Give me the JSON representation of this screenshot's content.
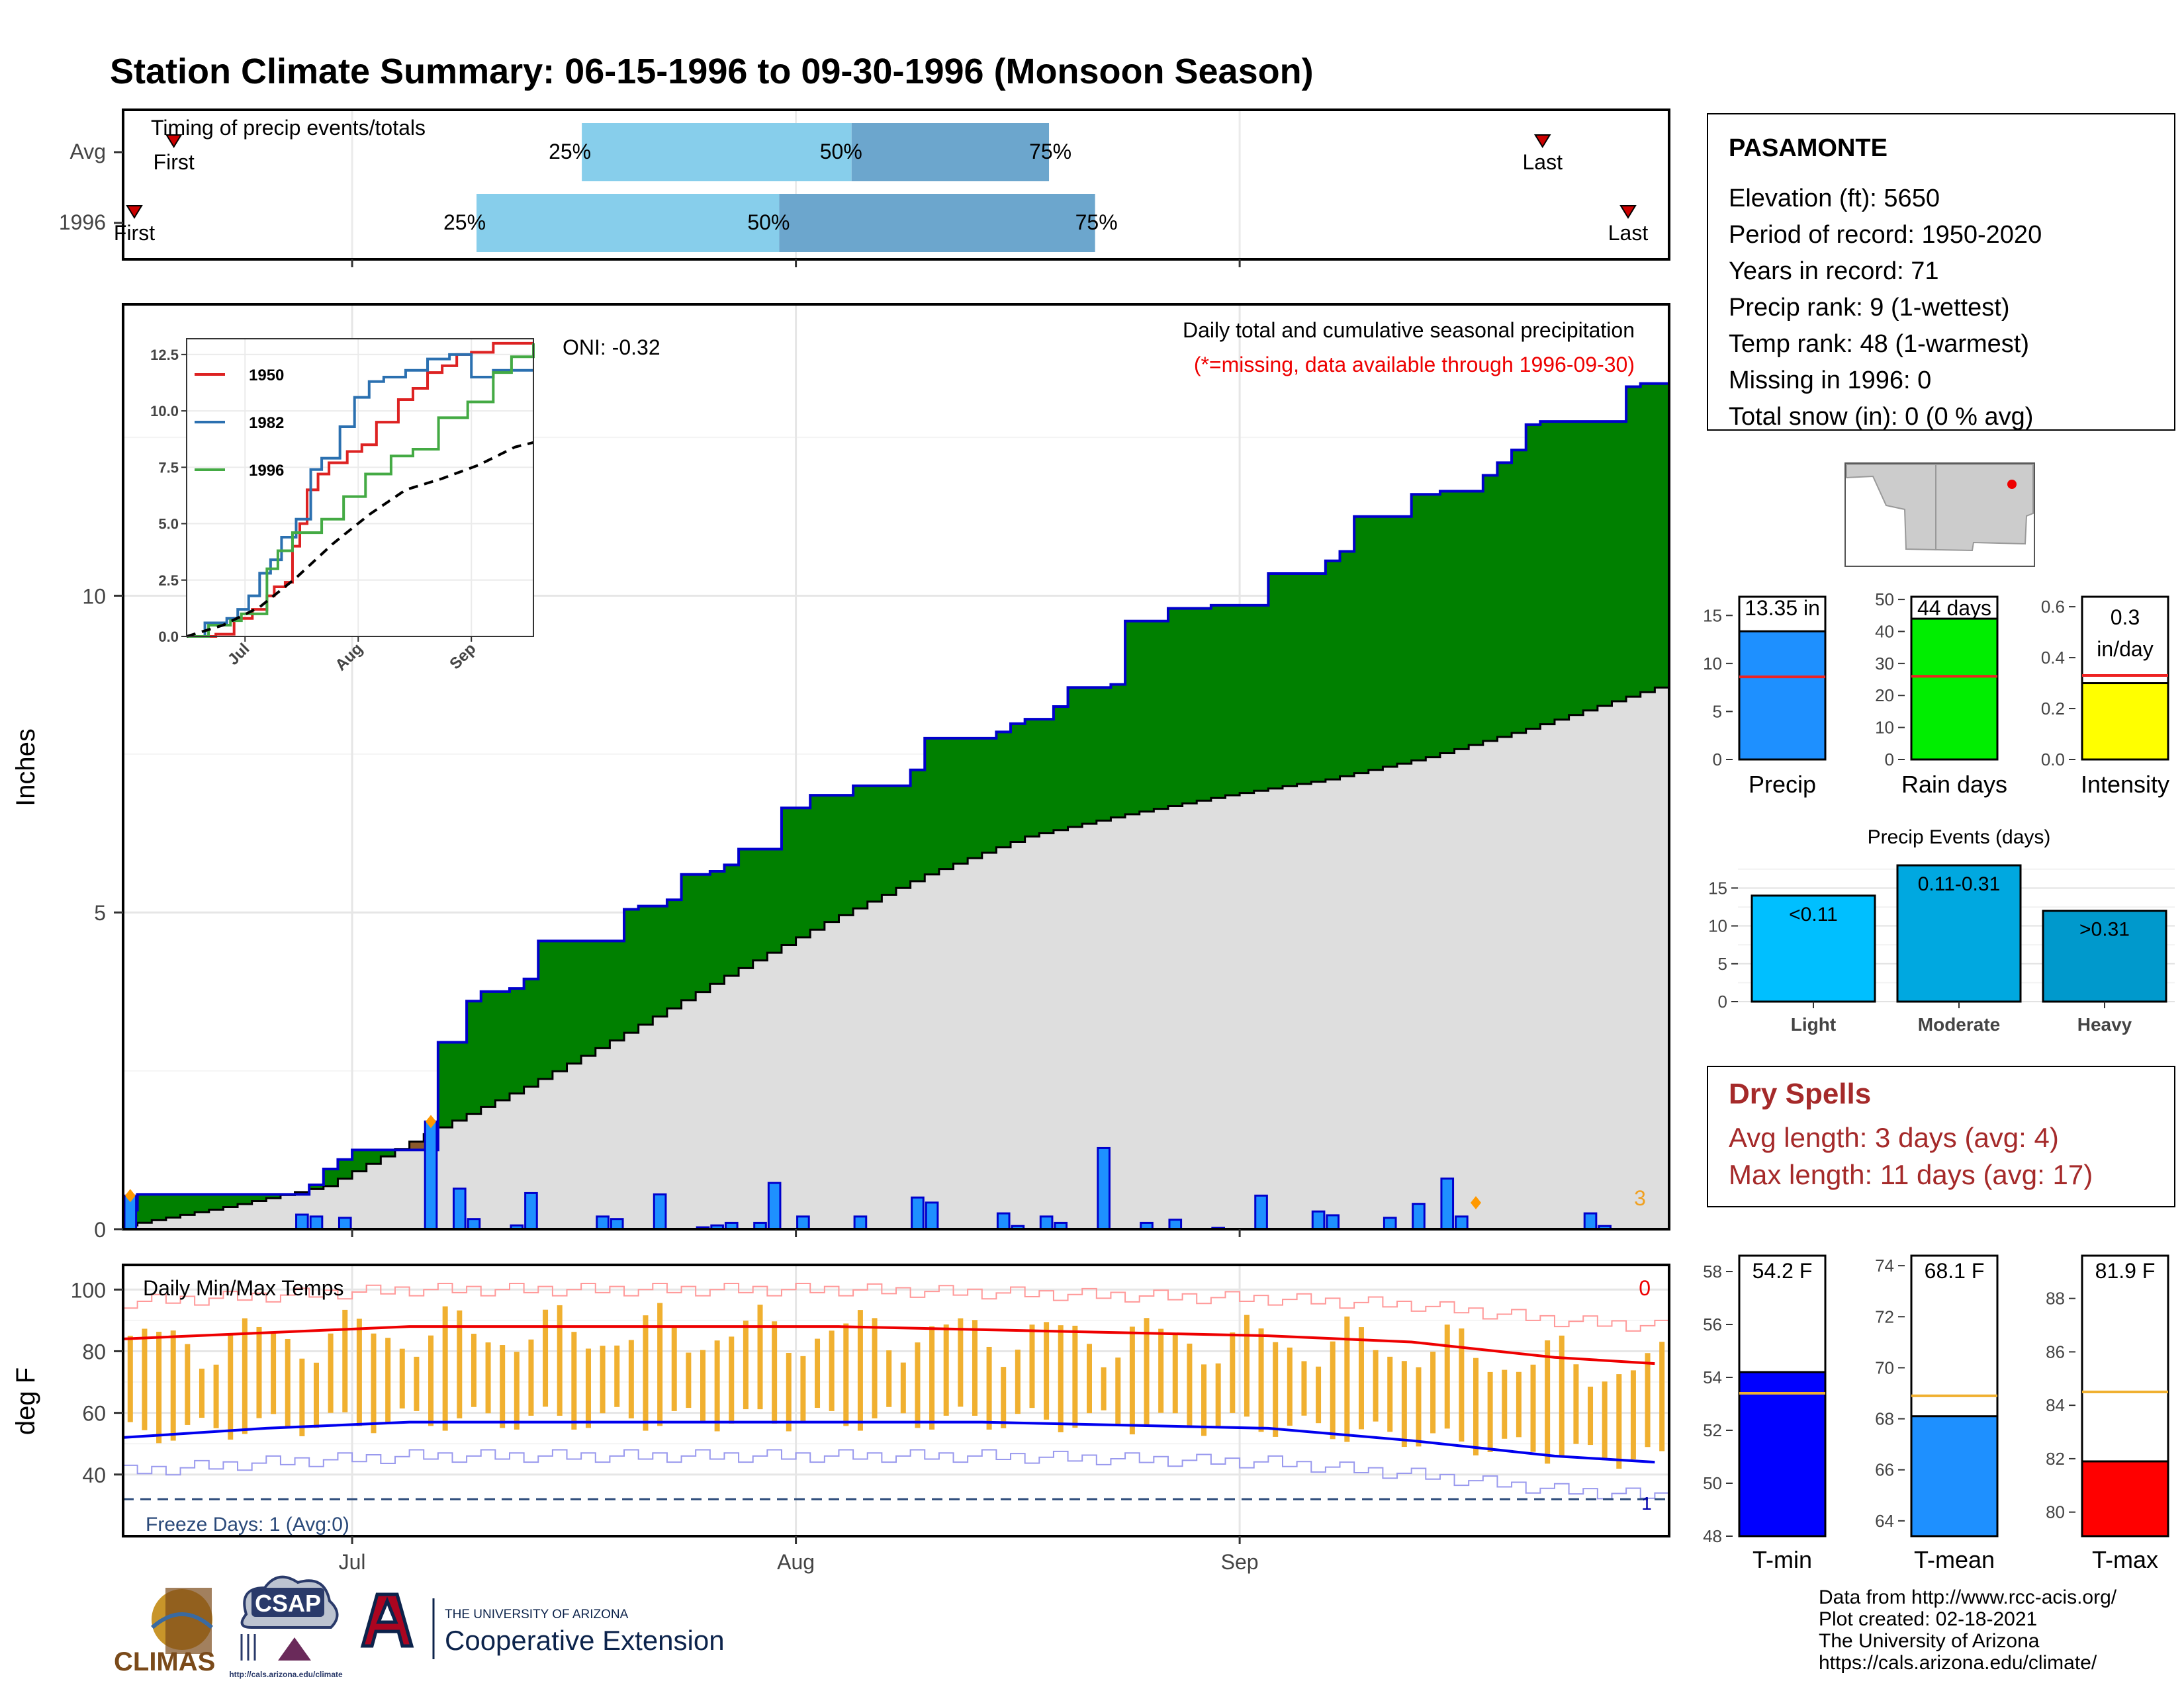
{
  "title": "Station Climate Summary: 06-15-1996 to 09-30-1996 (Monsoon Season)",
  "colors": {
    "title": "#ee0000",
    "cumulative_above": "#008000",
    "cumulative_below": "#8b5a2b",
    "normal_fill": "#dedede",
    "outline": "#0000cc",
    "daily_bar": "#1e90ff",
    "light_blue": "#87ceeb",
    "steel_blue": "#6ca6cd",
    "temp_bar": "#f0b030",
    "tmax_line": "#ee0000",
    "tmin_line": "#0000ee",
    "dry_spells": "#a52a2a",
    "freeze": "#2b4a7a"
  },
  "timing": {
    "label": "Timing of precip events/totals",
    "rows": [
      {
        "name": "Avg",
        "first_day": 3,
        "p25_day": 65,
        "p50_day": 106,
        "p75_day": 136,
        "last_day": 211,
        "first_label": "First",
        "last_label": "Last"
      },
      {
        "name": "1996",
        "first_day": -3,
        "p25_day": 49,
        "p50_day": 95,
        "p75_day": 143,
        "last_day": 224,
        "first_label": "First",
        "last_label": "Last"
      }
    ],
    "pct_labels": [
      "25%",
      "50%",
      "75%"
    ]
  },
  "precip_panel": {
    "ylabel": "Inches",
    "yticks": [
      0,
      5,
      10
    ],
    "ylim": [
      0,
      14.6
    ],
    "xticks": [
      {
        "label": "Jul",
        "day": 16
      },
      {
        "label": "Aug",
        "day": 47
      },
      {
        "label": "Sep",
        "day": 78
      }
    ],
    "oni": "ONI: -0.32",
    "caption": "Daily total and cumulative seasonal precipitation",
    "missing_note": "(*=missing, data available through 1996-09-30)",
    "missing_count": "3"
  },
  "chart_data": [
    {
      "type": "area",
      "name": "cumulative_precipitation",
      "x_unit": "day of season (0 = 1996-06-15)",
      "cumulative_1996": [
        [
          0,
          0.3
        ],
        [
          1,
          0.55
        ],
        [
          6,
          0.55
        ],
        [
          12,
          0.55
        ],
        [
          13,
          0.7
        ],
        [
          14,
          0.95
        ],
        [
          15,
          1.1
        ],
        [
          16,
          1.25
        ],
        [
          21,
          1.25
        ],
        [
          22,
          2.95
        ],
        [
          24,
          3.6
        ],
        [
          25,
          3.75
        ],
        [
          27,
          3.8
        ],
        [
          28,
          3.95
        ],
        [
          29,
          4.55
        ],
        [
          34,
          4.55
        ],
        [
          35,
          5.05
        ],
        [
          36,
          5.1
        ],
        [
          37,
          5.1
        ],
        [
          38,
          5.2
        ],
        [
          39,
          5.6
        ],
        [
          41,
          5.65
        ],
        [
          42,
          5.75
        ],
        [
          43,
          6.0
        ],
        [
          46,
          6.65
        ],
        [
          48,
          6.85
        ],
        [
          51,
          7.0
        ],
        [
          55,
          7.25
        ],
        [
          56,
          7.75
        ],
        [
          61,
          7.85
        ],
        [
          62,
          7.98
        ],
        [
          63,
          8.05
        ],
        [
          65,
          8.25
        ],
        [
          66,
          8.55
        ],
        [
          69,
          8.6
        ],
        [
          70,
          9.6
        ],
        [
          73,
          9.8
        ],
        [
          74,
          9.8
        ],
        [
          76,
          9.85
        ],
        [
          80,
          10.35
        ],
        [
          84,
          10.55
        ],
        [
          85,
          10.7
        ],
        [
          86,
          11.25
        ],
        [
          90,
          11.6
        ],
        [
          92,
          11.65
        ],
        [
          95,
          11.9
        ],
        [
          96,
          12.1
        ],
        [
          97,
          12.3
        ],
        [
          98,
          12.7
        ],
        [
          99,
          12.75
        ],
        [
          104,
          12.75
        ],
        [
          105,
          13.3
        ],
        [
          106,
          13.35
        ],
        [
          107,
          13.35
        ]
      ],
      "normal": [
        [
          0,
          0.06
        ],
        [
          7,
          0.35
        ],
        [
          14,
          0.68
        ],
        [
          21,
          1.5
        ],
        [
          28,
          2.25
        ],
        [
          35,
          3.1
        ],
        [
          42,
          4.0
        ],
        [
          49,
          4.85
        ],
        [
          56,
          5.6
        ],
        [
          63,
          6.2
        ],
        [
          70,
          6.55
        ],
        [
          77,
          6.85
        ],
        [
          84,
          7.1
        ],
        [
          91,
          7.45
        ],
        [
          98,
          7.9
        ],
        [
          107,
          8.55
        ]
      ],
      "ylabel": "Inches"
    },
    {
      "type": "bar",
      "name": "daily_precipitation",
      "x_unit": "day of season",
      "values": [
        [
          0,
          0.53
        ],
        [
          12,
          0.23
        ],
        [
          13,
          0.2
        ],
        [
          15,
          0.18
        ],
        [
          21,
          1.7
        ],
        [
          23,
          0.64
        ],
        [
          24,
          0.16
        ],
        [
          27,
          0.06
        ],
        [
          28,
          0.57
        ],
        [
          33,
          0.2
        ],
        [
          34,
          0.16
        ],
        [
          37,
          0.55
        ],
        [
          40,
          0.03
        ],
        [
          41,
          0.06
        ],
        [
          42,
          0.1
        ],
        [
          44,
          0.1
        ],
        [
          45,
          0.73
        ],
        [
          47,
          0.2
        ],
        [
          51,
          0.2
        ],
        [
          55,
          0.5
        ],
        [
          56,
          0.42
        ],
        [
          61,
          0.25
        ],
        [
          62,
          0.05
        ],
        [
          64,
          0.2
        ],
        [
          65,
          0.1
        ],
        [
          68,
          1.28
        ],
        [
          71,
          0.1
        ],
        [
          73,
          0.15
        ],
        [
          76,
          0.02
        ],
        [
          79,
          0.53
        ],
        [
          83,
          0.28
        ],
        [
          84,
          0.22
        ],
        [
          88,
          0.18
        ],
        [
          90,
          0.4
        ],
        [
          92,
          0.8
        ],
        [
          93,
          0.2
        ],
        [
          102,
          0.25
        ],
        [
          103,
          0.05
        ]
      ],
      "missing_marked_days": [
        0,
        21,
        94
      ]
    },
    {
      "type": "line",
      "name": "inset_cumulative_years",
      "xticks": [
        "Jul",
        "Aug",
        "Sep"
      ],
      "yticks": [
        0.0,
        2.5,
        5.0,
        7.5,
        10.0,
        12.5
      ],
      "ylim": [
        0,
        13.2
      ],
      "series": [
        {
          "name": "1950",
          "color": "#dd2222",
          "points": [
            [
              0,
              0
            ],
            [
              8,
              0.1
            ],
            [
              13,
              0.8
            ],
            [
              18,
              1.2
            ],
            [
              22,
              1.8
            ],
            [
              24,
              2.2
            ],
            [
              27,
              2.4
            ],
            [
              29,
              4.0
            ],
            [
              31,
              5.0
            ],
            [
              33,
              6.5
            ],
            [
              36,
              7.2
            ],
            [
              39,
              7.7
            ],
            [
              44,
              8.2
            ],
            [
              48,
              8.5
            ],
            [
              52,
              9.5
            ],
            [
              58,
              10.5
            ],
            [
              62,
              11.0
            ],
            [
              66,
              11.7
            ],
            [
              70,
              12.0
            ],
            [
              74,
              12.5
            ],
            [
              78,
              12.6
            ],
            [
              84,
              13.0
            ],
            [
              95,
              13.0
            ]
          ]
        },
        {
          "name": "1982",
          "color": "#2b70b0",
          "points": [
            [
              0,
              0
            ],
            [
              5,
              0.6
            ],
            [
              11,
              0.8
            ],
            [
              14,
              1.2
            ],
            [
              17,
              1.8
            ],
            [
              20,
              2.8
            ],
            [
              23,
              3.4
            ],
            [
              26,
              4.4
            ],
            [
              30,
              5.2
            ],
            [
              34,
              7.4
            ],
            [
              37,
              7.9
            ],
            [
              42,
              9.3
            ],
            [
              46,
              10.6
            ],
            [
              50,
              11.3
            ],
            [
              54,
              11.5
            ],
            [
              60,
              11.8
            ],
            [
              66,
              12.3
            ],
            [
              72,
              12.5
            ],
            [
              78,
              11.5
            ],
            [
              84,
              11.8
            ],
            [
              95,
              11.8
            ]
          ]
        },
        {
          "name": "1996",
          "color": "#44aa44",
          "points": [
            [
              0,
              0
            ],
            [
              6,
              0.5
            ],
            [
              12,
              0.7
            ],
            [
              15,
              1.0
            ],
            [
              22,
              3.0
            ],
            [
              25,
              3.8
            ],
            [
              29,
              4.6
            ],
            [
              37,
              5.2
            ],
            [
              43,
              6.2
            ],
            [
              49,
              7.2
            ],
            [
              56,
              8.0
            ],
            [
              62,
              8.3
            ],
            [
              69,
              9.7
            ],
            [
              77,
              10.4
            ],
            [
              84,
              11.7
            ],
            [
              89,
              12.4
            ],
            [
              95,
              13.0
            ]
          ]
        },
        {
          "name": "",
          "color": "#000000",
          "dashed": true,
          "points": [
            [
              0,
              0
            ],
            [
              10,
              0.5
            ],
            [
              20,
              1.3
            ],
            [
              30,
              2.6
            ],
            [
              40,
              4.1
            ],
            [
              50,
              5.4
            ],
            [
              60,
              6.5
            ],
            [
              70,
              7.0
            ],
            [
              80,
              7.6
            ],
            [
              90,
              8.4
            ],
            [
              95,
              8.6
            ]
          ]
        }
      ]
    },
    {
      "type": "bar",
      "name": "season_totals",
      "bars": [
        {
          "label": "Precip",
          "value": 13.35,
          "avg": 8.6,
          "value_label": "13.35 in",
          "yticks": [
            0,
            5,
            10,
            15
          ],
          "ylim": [
            0,
            17.5
          ],
          "color": "#1e90ff"
        },
        {
          "label": "Rain days",
          "value": 44,
          "avg": 26,
          "value_label": "44 days",
          "yticks": [
            0,
            10,
            20,
            30,
            40,
            50
          ],
          "ylim": [
            0,
            52.5
          ],
          "color": "#00ee00"
        },
        {
          "label": "Intensity",
          "value": 0.3,
          "avg": 0.33,
          "value_label": "0.3 in/day",
          "yticks": [
            0.0,
            0.2,
            0.4,
            0.6
          ],
          "ylim": [
            0,
            0.66
          ],
          "color": "#ffff00"
        }
      ]
    },
    {
      "type": "bar",
      "name": "precip_events",
      "title": "Precip Events (days)",
      "categories": [
        "Light",
        "Moderate",
        "Heavy"
      ],
      "values": [
        14,
        18,
        12
      ],
      "bar_labels": [
        "<0.11",
        "0.11-0.31",
        ">0.31"
      ],
      "colors": [
        "#00bfff",
        "#00a8e0",
        "#0099cc"
      ],
      "yticks": [
        0,
        5,
        10,
        15
      ],
      "ylim": [
        0,
        18
      ]
    },
    {
      "type": "line",
      "name": "daily_temperatures",
      "title": "Daily Min/Max Temps",
      "ylabel": "deg F",
      "yticks": [
        40,
        60,
        80,
        100
      ],
      "ylim": [
        20,
        108
      ],
      "tmax_avg": [
        [
          0,
          84
        ],
        [
          10,
          86
        ],
        [
          20,
          88
        ],
        [
          30,
          88
        ],
        [
          40,
          88
        ],
        [
          50,
          88
        ],
        [
          60,
          87
        ],
        [
          70,
          86
        ],
        [
          80,
          85
        ],
        [
          90,
          83
        ],
        [
          100,
          78
        ],
        [
          107,
          76
        ]
      ],
      "tmin_avg": [
        [
          0,
          52
        ],
        [
          10,
          55
        ],
        [
          20,
          57
        ],
        [
          30,
          57
        ],
        [
          40,
          57
        ],
        [
          50,
          57
        ],
        [
          60,
          57
        ],
        [
          70,
          56
        ],
        [
          80,
          55
        ],
        [
          90,
          51
        ],
        [
          100,
          46
        ],
        [
          107,
          44
        ]
      ],
      "freeze_days": "Freeze Days: 1 (Avg:0)",
      "freeze_count": "1",
      "missing_count": "0",
      "freeze_line": 32
    },
    {
      "type": "bar",
      "name": "temperature_means",
      "bars": [
        {
          "label": "T-min",
          "value": 54.2,
          "avg": 53.4,
          "value_label": "54.2 F",
          "yticks": [
            48,
            50,
            52,
            54,
            56,
            58
          ],
          "ylim": [
            48,
            58.8
          ],
          "color": "#0000ff"
        },
        {
          "label": "T-mean",
          "value": 68.1,
          "avg": 68.9,
          "value_label": "68.1 F",
          "yticks": [
            64,
            66,
            68,
            70,
            72,
            74
          ],
          "ylim": [
            63.4,
            74.6
          ],
          "color": "#1e90ff"
        },
        {
          "label": "T-max",
          "value": 81.9,
          "avg": 84.5,
          "value_label": "81.9 F",
          "yticks": [
            80,
            82,
            84,
            86,
            88
          ],
          "ylim": [
            79.1,
            89.8
          ],
          "color": "#ff0000"
        }
      ]
    }
  ],
  "station": {
    "name": "PASAMONTE",
    "lines": [
      "Elevation (ft): 5650",
      "Period of record: 1950-2020",
      "Years in record: 71",
      "Precip rank: 9 (1-wettest)",
      "Temp rank: 48 (1-warmest)",
      "Missing in 1996: 0",
      "Total snow (in): 0 (0 % avg)"
    ]
  },
  "dry_spells": {
    "title": "Dry Spells",
    "avg": "Avg length: 3 days (avg: 4)",
    "max": "Max length: 11 days (avg: 17)"
  },
  "footer": {
    "lines": [
      "Data from http://www.rcc-acis.org/",
      "Plot created: 02-18-2021",
      "The University of Arizona",
      "https://cals.arizona.edu/climate/"
    ],
    "climas": "CLIMAS",
    "csap": "CSAP",
    "csap_url": "http://cals.arizona.edu/climate",
    "ua_top": "THE UNIVERSITY OF ARIZONA",
    "ua_bottom": "Cooperative Extension"
  }
}
